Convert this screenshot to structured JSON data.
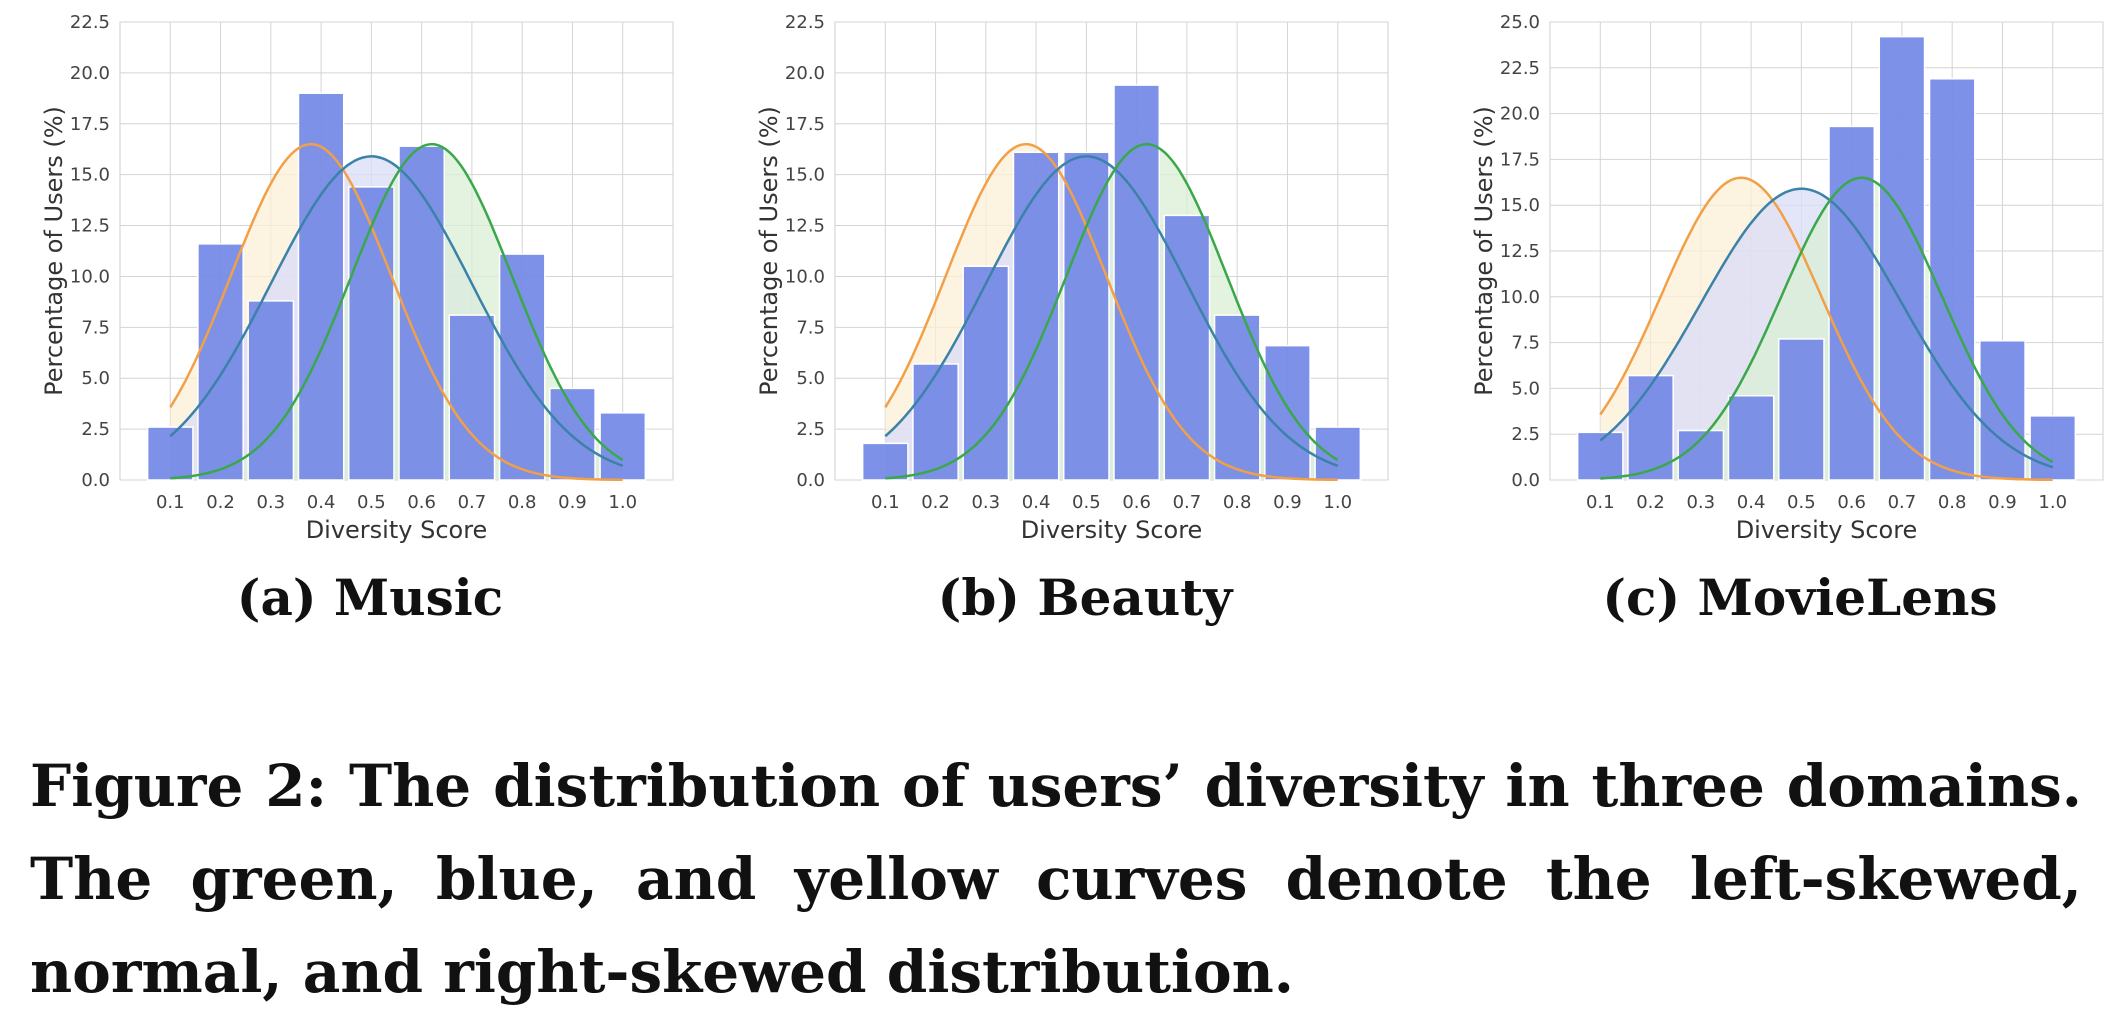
{
  "colors": {
    "bar": "#7489e6",
    "bar_edge": "#ffffff",
    "grid": "#d4d4d4",
    "curve_green": "#3aa84a",
    "curve_blue": "#3b82a8",
    "curve_yellow": "#f2a048",
    "fill_green": "#d9efd6",
    "fill_blue": "#d9dcf7",
    "fill_yellow": "#fcefd7"
  },
  "chart_data": [
    {
      "type": "bar",
      "subcaption": "(a) Music",
      "xlabel": "Diversity Score",
      "ylabel": "Percentage of Users (%)",
      "categories": [
        "0.1",
        "0.2",
        "0.3",
        "0.4",
        "0.5",
        "0.6",
        "0.7",
        "0.8",
        "0.9",
        "1.0"
      ],
      "values": [
        2.6,
        11.6,
        8.8,
        19.0,
        14.4,
        16.4,
        8.1,
        11.1,
        4.5,
        3.3
      ],
      "ylim": [
        0,
        22.5
      ],
      "yticks": [
        "0.0",
        "2.5",
        "5.0",
        "7.5",
        "10.0",
        "12.5",
        "15.0",
        "17.5",
        "20.0",
        "22.5"
      ],
      "grid": true,
      "overlay_curves": [
        "left-skewed",
        "normal",
        "right-skewed"
      ]
    },
    {
      "type": "bar",
      "subcaption": "(b) Beauty",
      "xlabel": "Diversity Score",
      "ylabel": "Percentage of Users (%)",
      "categories": [
        "0.1",
        "0.2",
        "0.3",
        "0.4",
        "0.5",
        "0.6",
        "0.7",
        "0.8",
        "0.9",
        "1.0"
      ],
      "values": [
        1.8,
        5.7,
        10.5,
        16.1,
        16.1,
        19.4,
        13.0,
        8.1,
        6.6,
        2.6
      ],
      "ylim": [
        0,
        22.5
      ],
      "yticks": [
        "0.0",
        "2.5",
        "5.0",
        "7.5",
        "10.0",
        "12.5",
        "15.0",
        "17.5",
        "20.0",
        "22.5"
      ],
      "grid": true,
      "overlay_curves": [
        "left-skewed",
        "normal",
        "right-skewed"
      ]
    },
    {
      "type": "bar",
      "subcaption": "(c) MovieLens",
      "xlabel": "Diversity Score",
      "ylabel": "Percentage of Users (%)",
      "categories": [
        "0.1",
        "0.2",
        "0.3",
        "0.4",
        "0.5",
        "0.6",
        "0.7",
        "0.8",
        "0.9",
        "1.0"
      ],
      "values": [
        2.6,
        5.7,
        2.7,
        4.6,
        7.7,
        19.3,
        24.2,
        21.9,
        7.6,
        3.5
      ],
      "ylim": [
        0,
        25.0
      ],
      "yticks": [
        "0.0",
        "2.5",
        "5.0",
        "7.5",
        "10.0",
        "12.5",
        "15.0",
        "17.5",
        "20.0",
        "22.5",
        "25.0"
      ],
      "grid": true,
      "overlay_curves": [
        "left-skewed",
        "normal",
        "right-skewed"
      ]
    }
  ],
  "curves": {
    "left-skewed": {
      "mu": 0.62,
      "sigma": 0.16,
      "peak": 16.5,
      "x_from": 0.1,
      "x_to": 1.0
    },
    "normal": {
      "mu": 0.5,
      "sigma": 0.2,
      "peak": 15.9,
      "x_from": 0.1,
      "x_to": 1.0
    },
    "right-skewed": {
      "mu": 0.38,
      "sigma": 0.16,
      "peak": 16.5,
      "x_from": 0.1,
      "x_to": 1.0
    }
  },
  "caption": "Figure 2: The distribution of users’ diversity in three domains. The green, blue, and yellow curves denote the left-skewed, normal, and right-skewed distribution."
}
